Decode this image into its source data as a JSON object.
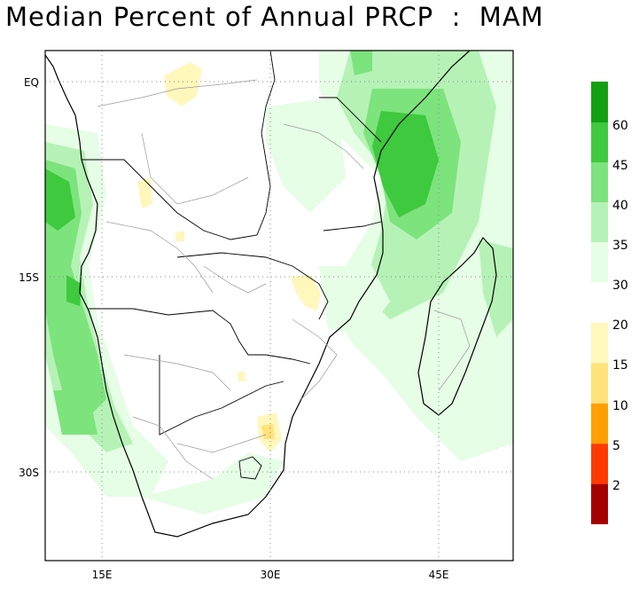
{
  "title": "Median Percent of Annual PRCP  :  MAM",
  "map": {
    "lat_labels": [
      "EQ",
      "15S",
      "30S"
    ],
    "lon_labels": [
      "15E",
      "30E",
      "45E"
    ],
    "gridlines": true,
    "region": "Southern Africa"
  },
  "legend": {
    "upper": [
      {
        "label": "60",
        "color": "#12a012"
      },
      {
        "label": "45",
        "color": "#3ec93e"
      },
      {
        "label": "40",
        "color": "#7de37d"
      },
      {
        "label": "35",
        "color": "#b6f2b6"
      },
      {
        "label": "30",
        "color": "#e6fde6"
      }
    ],
    "lower": [
      {
        "label": "20",
        "color": "#fff7bc"
      },
      {
        "label": "15",
        "color": "#ffe27a"
      },
      {
        "label": "10",
        "color": "#ff9f00"
      },
      {
        "label": "5",
        "color": "#ff3a00"
      },
      {
        "label": "2",
        "color": "#a50000"
      }
    ]
  }
}
